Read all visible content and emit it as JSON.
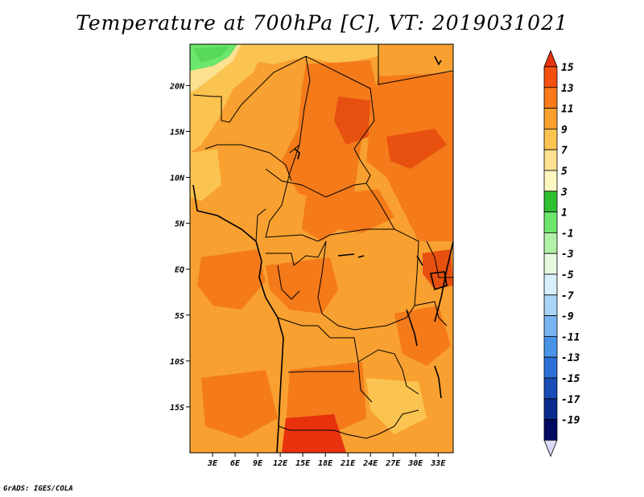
{
  "title": "Temperature at 700hPa [C], VT: 2019031021",
  "credit": "GrADS: IGES/COLA",
  "map": {
    "lon_range": [
      0,
      35
    ],
    "lat_range": [
      -20,
      24.5
    ],
    "x_ticks": [
      "3E",
      "6E",
      "9E",
      "12E",
      "15E",
      "18E",
      "21E",
      "24E",
      "27E",
      "30E",
      "33E"
    ],
    "y_ticks": [
      "20N",
      "15N",
      "10N",
      "5N",
      "EQ",
      "5S",
      "10S",
      "15S"
    ],
    "dominant_fill": "#f8a030"
  },
  "colorbar": {
    "labels": [
      "15",
      "13",
      "11",
      "9",
      "7",
      "5",
      "3",
      "1",
      "-1",
      "-3",
      "-5",
      "-7",
      "-9",
      "-11",
      "-13",
      "-15",
      "-17",
      "-19"
    ],
    "colors": [
      "#e8320e",
      "#f4500f",
      "#fa7a1a",
      "#f8a030",
      "#fbc350",
      "#fce290",
      "#fdf7c0",
      "#30c030",
      "#6ce66c",
      "#b2f2a8",
      "#e6fae0",
      "#d8f0fc",
      "#a8d4f8",
      "#78b4f0",
      "#4a94e8",
      "#2a70d8",
      "#1a4cb8",
      "#0a2a90",
      "#000a60",
      "#d8d8f8"
    ]
  }
}
